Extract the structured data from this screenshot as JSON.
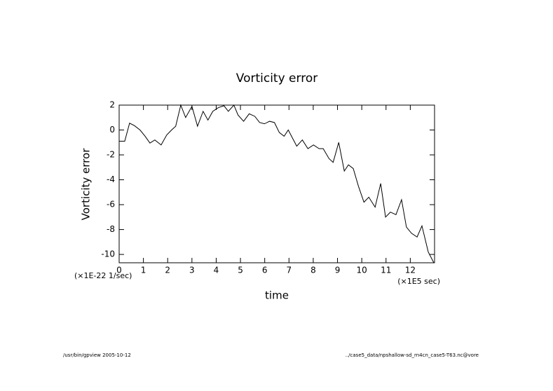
{
  "chart_data": {
    "type": "line",
    "title": "Vorticity error",
    "x_label": "time",
    "y_label": "Vorticity error",
    "x_unit": "(×1E5 sec)",
    "y_unit": "(×1E-22 1/sec)",
    "footer_left": "/usr/bin/gpview  2005-10-12",
    "footer_right": "../case5_data/npshallow-sd_rn4cn_case5-T63.nc@vore",
    "xlim": [
      0,
      13
    ],
    "ylim": [
      -10.67,
      2
    ],
    "xticks": [
      0,
      1,
      2,
      3,
      4,
      5,
      6,
      7,
      8,
      9,
      10,
      11,
      12
    ],
    "yticks": [
      -10,
      -8,
      -6,
      -4,
      -2,
      0,
      2
    ],
    "color": "#000000",
    "x": [
      0,
      0.23,
      0.43,
      0.63,
      0.86,
      1.07,
      1.27,
      1.47,
      1.73,
      1.96,
      2.16,
      2.33,
      2.54,
      2.74,
      3.0,
      3.23,
      3.46,
      3.66,
      3.86,
      4.09,
      4.32,
      4.5,
      4.73,
      4.9,
      5.13,
      5.36,
      5.59,
      5.79,
      5.99,
      6.2,
      6.4,
      6.6,
      6.8,
      6.97,
      7.32,
      7.55,
      7.78,
      8.01,
      8.24,
      8.41,
      8.65,
      8.82,
      9.05,
      9.28,
      9.45,
      9.65,
      9.86,
      10.09,
      10.29,
      10.55,
      10.78,
      10.98,
      11.18,
      11.41,
      11.64,
      11.84,
      12.05,
      12.28,
      12.48,
      12.74,
      12.97
    ],
    "values": [
      -0.9,
      -0.9,
      0.55,
      0.35,
      0,
      -0.5,
      -1.05,
      -0.8,
      -1.2,
      -0.4,
      0,
      0.3,
      2,
      1,
      1.9,
      0.3,
      1.5,
      0.8,
      1.5,
      1.8,
      1.95,
      1.5,
      2,
      1.2,
      0.7,
      1.3,
      1.1,
      0.6,
      0.5,
      0.7,
      0.6,
      -0.2,
      -0.5,
      0,
      -1.3,
      -0.8,
      -1.5,
      -1.2,
      -1.5,
      -1.5,
      -2.3,
      -2.6,
      -1.0,
      -3.3,
      -2.8,
      -3.1,
      -4.5,
      -5.8,
      -5.4,
      -6.2,
      -4.3,
      -7.0,
      -6.6,
      -6.8,
      -5.6,
      -7.8,
      -8.3,
      -8.6,
      -7.7,
      -9.8,
      -10.67
    ]
  }
}
